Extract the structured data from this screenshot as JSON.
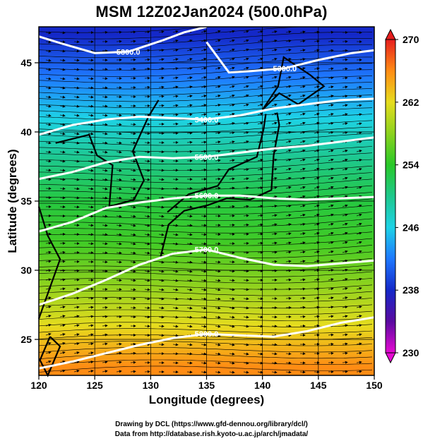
{
  "title": "MSM 12Z02Jan2024 (500.0hPa)",
  "credits": [
    "Drawing by DCL (https://www.gfd-dennou.org/library/dcl/)",
    "Data from http://database.rish.kyoto-u.ac.jp/arch/jmadata/"
  ],
  "chart_data": {
    "type": "heatmap",
    "title": "MSM 12Z02Jan2024 (500.0hPa)",
    "xlabel": "Longitude (degrees)",
    "ylabel": "Latitude  (degrees)",
    "xlim": [
      120,
      150
    ],
    "ylim": [
      22.4,
      47.6
    ],
    "x_ticks": [
      120,
      125,
      130,
      135,
      140,
      145,
      150
    ],
    "y_ticks": [
      25,
      30,
      35,
      40,
      45
    ],
    "grid": true,
    "colorbar": {
      "range": [
        230,
        270
      ],
      "ticks": [
        230,
        238,
        246,
        254,
        262,
        270
      ],
      "placement": "right",
      "stops": [
        {
          "value": 230,
          "color": "#e60ad2"
        },
        {
          "value": 234,
          "color": "#5a0aa0"
        },
        {
          "value": 238,
          "color": "#1428c8"
        },
        {
          "value": 242,
          "color": "#1e78ff"
        },
        {
          "value": 246,
          "color": "#1ed2e6"
        },
        {
          "value": 250,
          "color": "#1ec88c"
        },
        {
          "value": 254,
          "color": "#28c828"
        },
        {
          "value": 258,
          "color": "#8cd21e"
        },
        {
          "value": 262,
          "color": "#e6dc1e"
        },
        {
          "value": 266,
          "color": "#ff8c14"
        },
        {
          "value": 270,
          "color": "#e61e1e"
        }
      ]
    },
    "temperature_field_by_latitude": {
      "lat": [
        23,
        26,
        29,
        32,
        35,
        38,
        41,
        44,
        47
      ],
      "temp": [
        266,
        262,
        258,
        255,
        253,
        250,
        246,
        242,
        238
      ]
    },
    "contours": [
      {
        "label": "5300.0",
        "points": [
          [
            120,
            46.9
          ],
          [
            122,
            46.4
          ],
          [
            125,
            45.7
          ],
          [
            128,
            45.8
          ],
          [
            131,
            46.6
          ],
          [
            133,
            47.2
          ],
          [
            135,
            47.6
          ]
        ]
      },
      {
        "label": "5300.0",
        "points": [
          [
            135,
            46.5
          ],
          [
            137,
            44.3
          ],
          [
            139,
            44.4
          ],
          [
            142,
            44.6
          ],
          [
            145,
            45.2
          ],
          [
            148,
            45.7
          ],
          [
            150,
            45.9
          ]
        ]
      },
      {
        "label": "5400.0",
        "points": [
          [
            120,
            39.8
          ],
          [
            123,
            40.5
          ],
          [
            126,
            40.9
          ],
          [
            129,
            41.1
          ],
          [
            132,
            41.0
          ],
          [
            135,
            40.9
          ],
          [
            138,
            41.2
          ],
          [
            141,
            41.7
          ],
          [
            144,
            42.0
          ],
          [
            147,
            42.3
          ],
          [
            150,
            42.4
          ]
        ]
      },
      {
        "label": "5500.0",
        "points": [
          [
            120,
            36.6
          ],
          [
            123,
            37.1
          ],
          [
            126,
            37.8
          ],
          [
            129,
            38.2
          ],
          [
            132,
            38.1
          ],
          [
            135,
            38.2
          ],
          [
            138,
            38.5
          ],
          [
            141,
            38.8
          ],
          [
            144,
            39.0
          ],
          [
            147,
            39.3
          ],
          [
            150,
            39.6
          ]
        ]
      },
      {
        "label": "5600.0",
        "points": [
          [
            120,
            32.8
          ],
          [
            123,
            33.5
          ],
          [
            126,
            34.5
          ],
          [
            129,
            34.9
          ],
          [
            132,
            35.2
          ],
          [
            135,
            35.4
          ],
          [
            138,
            35.4
          ],
          [
            141,
            35.2
          ],
          [
            144,
            35.1
          ],
          [
            147,
            35.2
          ],
          [
            150,
            35.3
          ]
        ]
      },
      {
        "label": "5700.0",
        "points": [
          [
            120,
            27.5
          ],
          [
            123,
            28.3
          ],
          [
            126,
            29.3
          ],
          [
            129,
            30.4
          ],
          [
            132,
            31.2
          ],
          [
            135,
            31.5
          ],
          [
            138,
            30.9
          ],
          [
            141,
            30.4
          ],
          [
            144,
            30.3
          ],
          [
            147,
            30.5
          ],
          [
            150,
            30.7
          ]
        ]
      },
      {
        "label": "5800.0",
        "points": [
          [
            120,
            22.9
          ],
          [
            123,
            23.4
          ],
          [
            126,
            24.0
          ],
          [
            129,
            24.6
          ],
          [
            132,
            25.1
          ],
          [
            135,
            25.4
          ],
          [
            138,
            25.3
          ],
          [
            141,
            25.2
          ],
          [
            144,
            25.6
          ],
          [
            147,
            26.2
          ],
          [
            150,
            26.6
          ]
        ]
      }
    ]
  }
}
